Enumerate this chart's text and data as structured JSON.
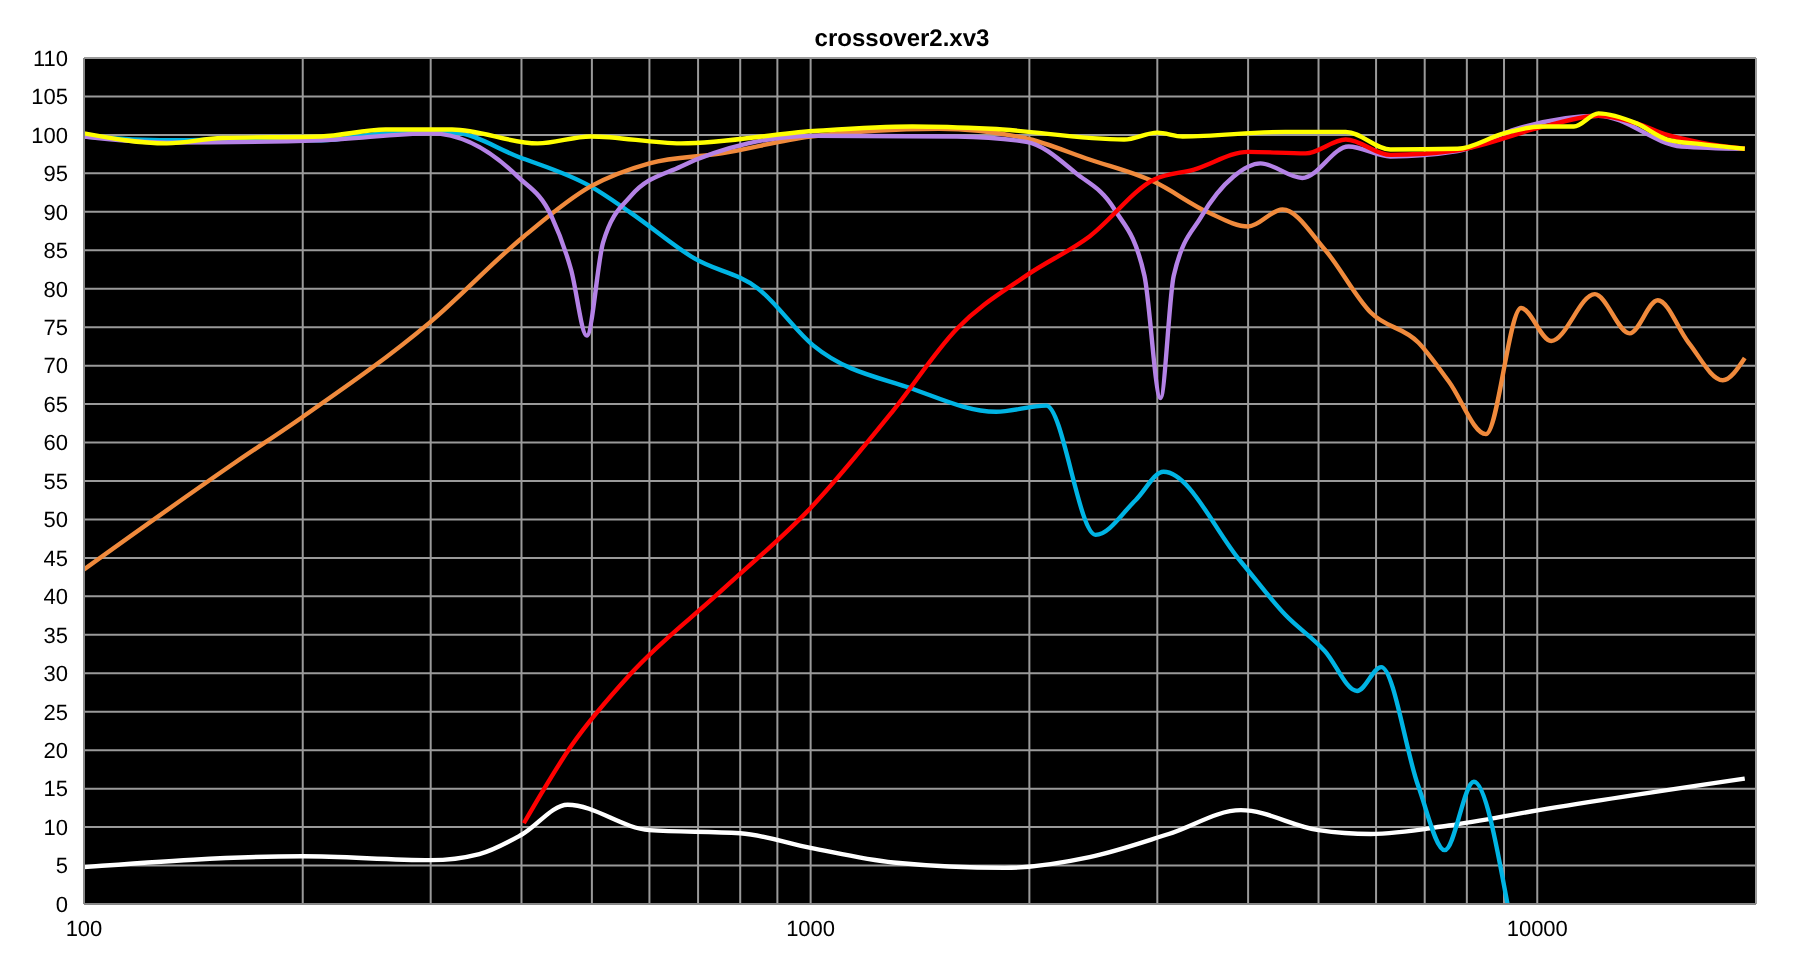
{
  "chart_data": {
    "type": "line",
    "title": "crossover2.xv3",
    "xlim": [
      100,
      20000
    ],
    "ylim": [
      0,
      110
    ],
    "log": "x",
    "grid": true,
    "xticks": [
      100,
      {
        "value": 200,
        "label": null
      },
      {
        "value": 300,
        "label": null
      },
      {
        "value": 400,
        "label": null
      },
      {
        "value": 500,
        "label": null
      },
      {
        "value": 600,
        "label": null
      },
      {
        "value": 700,
        "label": null
      },
      {
        "value": 800,
        "label": null
      },
      {
        "value": 900,
        "label": null
      },
      1000,
      {
        "value": 2000,
        "label": null
      },
      {
        "value": 3000,
        "label": null
      },
      {
        "value": 4000,
        "label": null
      },
      {
        "value": 5000,
        "label": null
      },
      {
        "value": 6000,
        "label": null
      },
      {
        "value": 7000,
        "label": null
      },
      {
        "value": 8000,
        "label": null
      },
      {
        "value": 9000,
        "label": null
      },
      10000
    ],
    "yticks": [
      0,
      5,
      10,
      15,
      20,
      25,
      30,
      35,
      40,
      45,
      50,
      55,
      60,
      65,
      70,
      75,
      80,
      85,
      90,
      95,
      100,
      105,
      110
    ],
    "series": [
      {
        "color": "#ffffff",
        "x": [
          100,
          200,
          300,
          350,
          400,
          463,
          600,
          800,
          1000,
          1300,
          1850,
          2420,
          3110,
          3910,
          5000,
          5900,
          7560,
          10050,
          19300
        ],
        "values": [
          4.8,
          6.2,
          5.7,
          6.5,
          9,
          12.9,
          9.6,
          9.2,
          7.3,
          5.4,
          4.7,
          6.1,
          9.1,
          12.2,
          9.6,
          9.1,
          10.2,
          12.2,
          16.3
        ]
      },
      {
        "color": "#00b4e4",
        "x": [
          100,
          130,
          160,
          212,
          260,
          321,
          395,
          498,
          565,
          693,
          847,
          1009,
          1380,
          1800,
          2110,
          2467,
          2800,
          3060,
          3910,
          4500,
          5100,
          5650,
          6100,
          6860,
          7460,
          8180,
          9100
        ],
        "values": [
          99.8,
          99.3,
          99.4,
          99.3,
          100.2,
          100.3,
          97.2,
          93.3,
          89.9,
          83.9,
          80,
          72.6,
          67,
          64,
          64.8,
          48,
          52.5,
          56.2,
          44.5,
          37.6,
          32.9,
          27.7,
          30.8,
          15.3,
          7,
          15.9,
          0
        ]
      },
      {
        "color": "#f08a3c",
        "x": [
          100,
          162,
          199,
          299,
          403,
          498,
          600,
          754,
          1000,
          1500,
          1970,
          2420,
          2970,
          3530,
          4000,
          4460,
          5100,
          5900,
          6860,
          7560,
          8500,
          9500,
          10450,
          12000,
          13400,
          14650,
          16150,
          18000,
          19300
        ],
        "values": [
          43.5,
          57.5,
          63.2,
          75.6,
          86.8,
          93.3,
          96.3,
          97.6,
          99.8,
          100.8,
          99.6,
          96.8,
          93.9,
          89.9,
          88.1,
          90.3,
          85.1,
          76.9,
          73,
          67.9,
          61.1,
          77.5,
          73.2,
          79.3,
          74.2,
          78.5,
          73,
          68.1,
          71
        ]
      },
      {
        "color": "#b482e6",
        "x": [
          100,
          130,
          212,
          300,
          395,
          440,
          468,
          492,
          518,
          565,
          663,
          820,
          1010,
          1590,
          1980,
          2320,
          2620,
          2880,
          3030,
          3160,
          3450,
          3820,
          4160,
          4750,
          5500,
          6280,
          7770,
          9370,
          12140,
          15800,
          19300
        ],
        "values": [
          99.8,
          99,
          99.3,
          100.2,
          94.6,
          89.4,
          82.5,
          73.9,
          86,
          92,
          95.9,
          98.9,
          99.9,
          99.8,
          99.1,
          95,
          90.3,
          81.7,
          65.8,
          81.7,
          89.4,
          94.6,
          96.3,
          94.4,
          98.5,
          97.2,
          97.9,
          100.8,
          102.5,
          98.5,
          98.2
        ]
      },
      {
        "color": "#ff0000",
        "x": [
          403,
          468,
          565,
          753,
          1000,
          1295,
          1590,
          1980,
          2420,
          2970,
          3370,
          4000,
          4800,
          5450,
          6280,
          7770,
          10130,
          12140,
          13700,
          15100,
          16800,
          19300
        ],
        "values": [
          10.5,
          20.5,
          29.9,
          40.7,
          51.5,
          64,
          74.8,
          81.7,
          86.8,
          94.2,
          95.5,
          97.8,
          97.6,
          99.4,
          97.4,
          98,
          101,
          102.5,
          101.5,
          100,
          99,
          98.2
        ]
      },
      {
        "color": "#ffff00",
        "x": [
          100,
          130,
          155,
          212,
          260,
          321,
          421,
          498,
          663,
          1010,
          1380,
          1770,
          2700,
          3000,
          3250,
          4500,
          5450,
          6280,
          7770,
          9000,
          10130,
          11230,
          12140,
          13700,
          15100,
          16800,
          19300
        ],
        "values": [
          100.2,
          98.9,
          99.6,
          99.8,
          100.7,
          100.7,
          98.9,
          99.8,
          98.9,
          100.5,
          101.1,
          100.8,
          99.4,
          100.3,
          99.8,
          100.4,
          100.4,
          98.1,
          98.2,
          100.2,
          101.1,
          101.1,
          102.8,
          101.5,
          99.4,
          98.8,
          98.2
        ]
      }
    ]
  }
}
